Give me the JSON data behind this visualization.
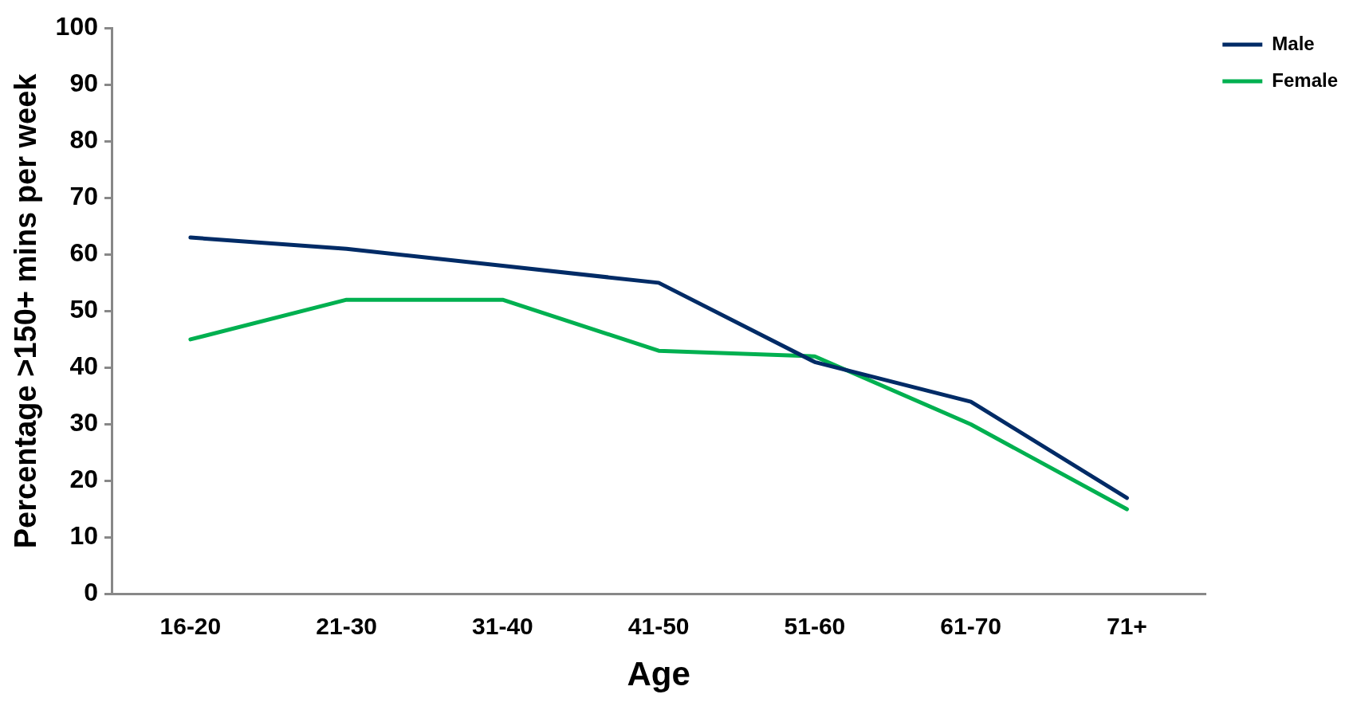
{
  "chart_data": {
    "type": "line",
    "xlabel": "Age",
    "ylabel": "Percentage >150+ mins per week",
    "categories": [
      "16-20",
      "21-30",
      "31-40",
      "41-50",
      "51-60",
      "61-70",
      "71+"
    ],
    "series": [
      {
        "name": "Male",
        "color": "#002b66",
        "values": [
          63,
          61,
          58,
          55,
          41,
          34,
          17
        ]
      },
      {
        "name": "Female",
        "color": "#00b050",
        "values": [
          45,
          52,
          52,
          43,
          42,
          30,
          15
        ]
      }
    ],
    "ylim": [
      0,
      100
    ],
    "yticks": [
      0,
      10,
      20,
      30,
      40,
      50,
      60,
      70,
      80,
      90,
      100
    ],
    "grid": false,
    "legend": "right",
    "marker": "none",
    "line_style": "solid"
  }
}
